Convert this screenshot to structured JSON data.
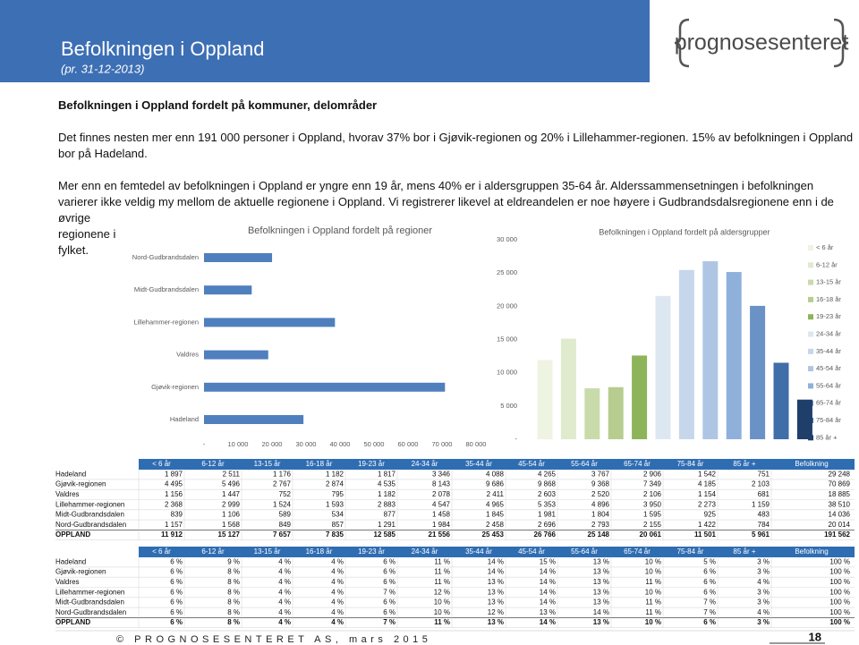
{
  "header": {
    "title": "Befolkningen i Oppland",
    "subtitle": "(pr. 31-12-2013)",
    "logo": "prognosesenteret"
  },
  "body": {
    "heading": "Befolkningen i Oppland fordelt på kommuner, delområder",
    "paragraphs": [
      "Det finnes nesten mer enn 191 000 personer i Oppland, hvorav 37% bor i Gjøvik-regionen og 20% i Lillehammer-regionen. 15% av befolkningen i Oppland bor på Hadeland.",
      "Mer enn en femtedel av befolkningen  i Oppland er yngre enn 19 år, mens 40% er i aldersgruppen 35-64 år. Alderssammensetningen i befolkningen varierer ikke veldig my mellom de aktuelle regionene i Oppland. Vi registrerer likevel at eldreandelen er noe høyere i Gudbrandsdalsregionene enn i de øvrige regionene i fylket."
    ]
  },
  "chart_data": [
    {
      "type": "bar",
      "orientation": "horizontal",
      "title": "Befolkningen i Oppland fordelt på regioner",
      "categories": [
        "Nord-Gudbrandsdalen",
        "Midt-Gudbrandsdalen",
        "Lillehammer-regionen",
        "Valdres",
        "Gjøvik-regionen",
        "Hadeland"
      ],
      "values": [
        20014,
        14036,
        38510,
        18885,
        70869,
        29248
      ],
      "color": "#4f7fbd",
      "xlim": [
        0,
        80000
      ],
      "xticks": [
        {
          "value": 0,
          "label": "-"
        },
        {
          "value": 10000,
          "label": "10 000"
        },
        {
          "value": 20000,
          "label": "20 000"
        },
        {
          "value": 30000,
          "label": "30 000"
        },
        {
          "value": 40000,
          "label": "40 000"
        },
        {
          "value": 50000,
          "label": "50 000"
        },
        {
          "value": 60000,
          "label": "60 000"
        },
        {
          "value": 70000,
          "label": "70 000"
        },
        {
          "value": 80000,
          "label": "80 000"
        }
      ]
    },
    {
      "type": "bar",
      "orientation": "vertical",
      "title": "Befolkningen i Oppland fordelt på aldersgrupper",
      "categories": [
        "< 6 år",
        "6-12 år",
        "13-15 år",
        "16-18 år",
        "19-23 år",
        "24-34 år",
        "35-44 år",
        "45-54 år",
        "55-64 år",
        "65-74 år",
        "75-84 år",
        "85 år +"
      ],
      "values": [
        11912,
        15127,
        7657,
        7835,
        12585,
        21556,
        25453,
        26766,
        25148,
        20061,
        11501,
        5961
      ],
      "colors": [
        "#eef3e2",
        "#e0eacd",
        "#c9dbaa",
        "#b7cd90",
        "#8db45a",
        "#dde7f1",
        "#c6d7eb",
        "#aec6e4",
        "#8fb0da",
        "#6a92c6",
        "#3f6ea8",
        "#1f3e6a"
      ],
      "ylim": [
        0,
        30000
      ],
      "yticks": [
        {
          "value": 0,
          "label": "-"
        },
        {
          "value": 5000,
          "label": "5 000"
        },
        {
          "value": 10000,
          "label": "10 000"
        },
        {
          "value": 15000,
          "label": "15 000"
        },
        {
          "value": 20000,
          "label": "20 000"
        },
        {
          "value": 25000,
          "label": "25 000"
        },
        {
          "value": 30000,
          "label": "30 000"
        }
      ],
      "legend": "right"
    }
  ],
  "tables": [
    {
      "columns": [
        "< 6 år",
        "6-12 år",
        "13-15 år",
        "16-18 år",
        "19-23 år",
        "24-34 år",
        "35-44 år",
        "45-54 år",
        "55-64 år",
        "65-74 år",
        "75-84 år",
        "85 år +",
        "Befolkning"
      ],
      "rows": [
        [
          "Hadeland",
          "1 897",
          "2 511",
          "1 176",
          "1 182",
          "1 817",
          "3 346",
          "4 088",
          "4 265",
          "3 767",
          "2 906",
          "1 542",
          "751",
          "29 248"
        ],
        [
          "Gjøvik-regionen",
          "4 495",
          "5 496",
          "2 767",
          "2 874",
          "4 535",
          "8 143",
          "9 686",
          "9 868",
          "9 368",
          "7 349",
          "4 185",
          "2 103",
          "70 869"
        ],
        [
          "Valdres",
          "1 156",
          "1 447",
          "752",
          "795",
          "1 182",
          "2 078",
          "2 411",
          "2 603",
          "2 520",
          "2 106",
          "1 154",
          "681",
          "18 885"
        ],
        [
          "Lillehammer-regionen",
          "2 368",
          "2 999",
          "1 524",
          "1 593",
          "2 883",
          "4 547",
          "4 965",
          "5 353",
          "4 896",
          "3 950",
          "2 273",
          "1 159",
          "38 510"
        ],
        [
          "Midt-Gudbrandsdalen",
          "839",
          "1 106",
          "589",
          "534",
          "877",
          "1 458",
          "1 845",
          "1 981",
          "1 804",
          "1 595",
          "925",
          "483",
          "14 036"
        ],
        [
          "Nord-Gudbrandsdalen",
          "1 157",
          "1 568",
          "849",
          "857",
          "1 291",
          "1 984",
          "2 458",
          "2 696",
          "2 793",
          "2 155",
          "1 422",
          "784",
          "20 014"
        ],
        [
          "OPPLAND",
          "11 912",
          "15 127",
          "7 657",
          "7 835",
          "12 585",
          "21 556",
          "25 453",
          "26 766",
          "25 148",
          "20 061",
          "11 501",
          "5 961",
          "191 562"
        ]
      ]
    },
    {
      "columns": [
        "< 6 år",
        "6-12 år",
        "13-15 år",
        "16-18 år",
        "19-23 år",
        "24-34 år",
        "35-44 år",
        "45-54 år",
        "55-64 år",
        "65-74 år",
        "75-84 år",
        "85 år +",
        "Befolkning"
      ],
      "rows": [
        [
          "Hadeland",
          "6 %",
          "9 %",
          "4 %",
          "4 %",
          "6 %",
          "11 %",
          "14 %",
          "15 %",
          "13 %",
          "10 %",
          "5 %",
          "3 %",
          "100 %"
        ],
        [
          "Gjøvik-regionen",
          "6 %",
          "8 %",
          "4 %",
          "4 %",
          "6 %",
          "11 %",
          "14 %",
          "14 %",
          "13 %",
          "10 %",
          "6 %",
          "3 %",
          "100 %"
        ],
        [
          "Valdres",
          "6 %",
          "8 %",
          "4 %",
          "4 %",
          "6 %",
          "11 %",
          "13 %",
          "14 %",
          "13 %",
          "11 %",
          "6 %",
          "4 %",
          "100 %"
        ],
        [
          "Lillehammer-regionen",
          "6 %",
          "8 %",
          "4 %",
          "4 %",
          "7 %",
          "12 %",
          "13 %",
          "14 %",
          "13 %",
          "10 %",
          "6 %",
          "3 %",
          "100 %"
        ],
        [
          "Midt-Gudbrandsdalen",
          "6 %",
          "8 %",
          "4 %",
          "4 %",
          "6 %",
          "10 %",
          "13 %",
          "14 %",
          "13 %",
          "11 %",
          "7 %",
          "3 %",
          "100 %"
        ],
        [
          "Nord-Gudbrandsdalen",
          "6 %",
          "8 %",
          "4 %",
          "4 %",
          "6 %",
          "10 %",
          "12 %",
          "13 %",
          "14 %",
          "11 %",
          "7 %",
          "4 %",
          "100 %"
        ],
        [
          "OPPLAND",
          "6 %",
          "8 %",
          "4 %",
          "4 %",
          "7 %",
          "11 %",
          "13 %",
          "14 %",
          "13 %",
          "10 %",
          "6 %",
          "3 %",
          "100 %"
        ]
      ]
    }
  ],
  "footer": {
    "text": "© PROGNOSESENTERET AS, mars 2015",
    "page": "18"
  }
}
